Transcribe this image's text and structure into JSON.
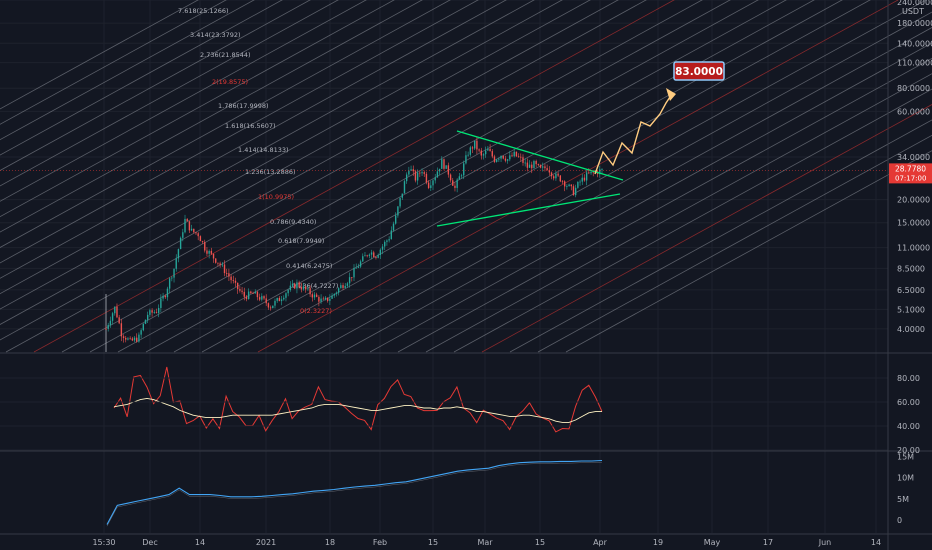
{
  "chart_data": [
    {
      "type": "candlestick",
      "panel": "price",
      "currency": "USDT",
      "y_scale": "log",
      "ylim": [
        3.0,
        240.0
      ],
      "y_ticks": [
        "240.0000",
        "180.0000",
        "140.0000",
        "110.0000",
        "80.0000",
        "60.0000",
        "34.0000",
        "20.0000",
        "15.0000",
        "11.0000",
        "8.5000",
        "6.5000",
        "5.1000",
        "4.0000"
      ],
      "last_price": "28.7780",
      "countdown": "07:17:00",
      "target_label": "83.0000",
      "close_path": [
        [
          0,
          4.0
        ],
        [
          8,
          5.2
        ],
        [
          14,
          3.8
        ],
        [
          22,
          3.4
        ],
        [
          30,
          3.6
        ],
        [
          38,
          4.8
        ],
        [
          46,
          5.0
        ],
        [
          54,
          6.2
        ],
        [
          62,
          8.5
        ],
        [
          68,
          12.0
        ],
        [
          72,
          15.5
        ],
        [
          78,
          13.5
        ],
        [
          84,
          13.0
        ],
        [
          90,
          11.0
        ],
        [
          96,
          10.0
        ],
        [
          102,
          9.2
        ],
        [
          110,
          8.0
        ],
        [
          118,
          6.8
        ],
        [
          126,
          6.0
        ],
        [
          134,
          6.2
        ],
        [
          142,
          5.8
        ],
        [
          150,
          5.3
        ],
        [
          158,
          5.8
        ],
        [
          166,
          6.5
        ],
        [
          174,
          7.0
        ],
        [
          182,
          6.5
        ],
        [
          190,
          6.0
        ],
        [
          198,
          5.6
        ],
        [
          206,
          6.0
        ],
        [
          214,
          6.8
        ],
        [
          222,
          7.5
        ],
        [
          228,
          8.5
        ],
        [
          234,
          9.5
        ],
        [
          240,
          10.5
        ],
        [
          246,
          10.0
        ],
        [
          252,
          11.2
        ],
        [
          258,
          12.5
        ],
        [
          264,
          16.0
        ],
        [
          270,
          22.0
        ],
        [
          276,
          30.0
        ],
        [
          282,
          26.0
        ],
        [
          288,
          29.0
        ],
        [
          294,
          24.0
        ],
        [
          300,
          27.0
        ],
        [
          306,
          32.0
        ],
        [
          312,
          28.0
        ],
        [
          318,
          23.0
        ],
        [
          324,
          28.0
        ],
        [
          330,
          36.0
        ],
        [
          336,
          40.0
        ],
        [
          342,
          34.0
        ],
        [
          348,
          37.0
        ],
        [
          354,
          33.0
        ],
        [
          360,
          35.0
        ],
        [
          366,
          33.0
        ],
        [
          372,
          35.0
        ],
        [
          378,
          33.0
        ],
        [
          384,
          30.0
        ],
        [
          390,
          31.0
        ],
        [
          396,
          29.0
        ],
        [
          402,
          30.0
        ],
        [
          408,
          27.0
        ],
        [
          414,
          26.0
        ],
        [
          420,
          24.0
        ],
        [
          426,
          22.0
        ],
        [
          432,
          25.0
        ],
        [
          438,
          27.0
        ],
        [
          444,
          28.0
        ],
        [
          452,
          28.8
        ]
      ]
    },
    {
      "type": "line",
      "panel": "oscillator",
      "ylim": [
        20,
        100
      ],
      "y_ticks": [
        "80.00",
        "60.00",
        "40.00",
        "20.00"
      ],
      "series": [
        {
          "color": "#e53935",
          "values": [
            55,
            62,
            50,
            78,
            85,
            70,
            60,
            65,
            88,
            62,
            58,
            45,
            42,
            50,
            38,
            45,
            40,
            62,
            55,
            45,
            42,
            40,
            48,
            38,
            42,
            55,
            60,
            48,
            52,
            55,
            60,
            70,
            65,
            58,
            62,
            55,
            50,
            48,
            42,
            40,
            55,
            65,
            72,
            78,
            68,
            62,
            58,
            50,
            55,
            52,
            60,
            65,
            70,
            58,
            48,
            45,
            52,
            50,
            48,
            42,
            40,
            45,
            55,
            58,
            50,
            48,
            42,
            38,
            35,
            40,
            55,
            70,
            75,
            62,
            55
          ]
        },
        {
          "color": "#fff3c4",
          "values": [
            56,
            57,
            58,
            60,
            62,
            63,
            62,
            60,
            58,
            56,
            53,
            51,
            49,
            48,
            47,
            47,
            47,
            48,
            49,
            49,
            49,
            49,
            49,
            49,
            49,
            50,
            51,
            52,
            53,
            54,
            55,
            57,
            58,
            58,
            58,
            57,
            56,
            55,
            54,
            53,
            53,
            54,
            55,
            56,
            57,
            57,
            56,
            55,
            55,
            54,
            55,
            55,
            56,
            55,
            54,
            52,
            52,
            51,
            50,
            49,
            48,
            48,
            49,
            49,
            48,
            47,
            46,
            44,
            43,
            43,
            45,
            48,
            51,
            52,
            52
          ]
        }
      ]
    },
    {
      "type": "line",
      "panel": "volume",
      "ylim": [
        -3,
        16
      ],
      "y_ticks": [
        "15M",
        "10M",
        "5M",
        "0"
      ],
      "series": [
        {
          "color": "#42a5f5",
          "values": [
            -1,
            3.5,
            4,
            4.5,
            5,
            5.5,
            6,
            7.5,
            6,
            6,
            6,
            5.8,
            5.5,
            5.5,
            5.5,
            5.6,
            5.8,
            6,
            6.2,
            6.5,
            6.8,
            7,
            7.2,
            7.5,
            7.8,
            8,
            8.2,
            8.5,
            8.8,
            9,
            9.5,
            10,
            10.5,
            11,
            11.5,
            11.8,
            12,
            12.2,
            12.8,
            13.2,
            13.5,
            13.6,
            13.7,
            13.7,
            13.8,
            13.8,
            13.9,
            13.9,
            14
          ]
        }
      ]
    }
  ],
  "x_ticks": [
    "15:30",
    "Dec",
    "14",
    "2021",
    "18",
    "Feb",
    "15",
    "Mar",
    "15",
    "Apr",
    "19",
    "May",
    "17",
    "Jun",
    "14"
  ],
  "fib_labels": [
    "7.618(25.1266)",
    "3.414(23.3792)",
    "2.736(21.8544)",
    "2(19.8575)",
    "1.786(17.9998)",
    "1.618(16.5607)",
    "1.414(14.8133)",
    "1.236(13.2886)",
    "1(10.9975)",
    "0.786(9.4340)",
    "0.618(7.9949)",
    "0.414(6.2475)",
    "0.236(4.7227)",
    "0(2.3227)"
  ]
}
